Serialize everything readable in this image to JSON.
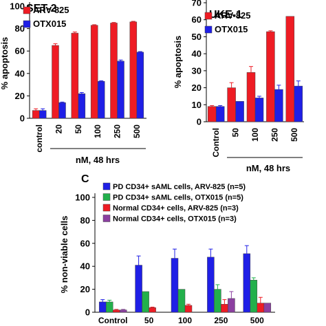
{
  "chart_data": [
    {
      "type": "bar",
      "panel_label": "",
      "title": "SET-2",
      "ylabel": "% apoptosis",
      "xlabel": "nM, 48 hrs",
      "categories": [
        "control",
        "20",
        "50",
        "100",
        "250",
        "500"
      ],
      "ylim": [
        0,
        100
      ],
      "yticks": [
        0,
        20,
        40,
        60,
        80,
        100
      ],
      "legend_position": "top-left",
      "series": [
        {
          "name": "ARV-825",
          "color": "#ee1c24",
          "values": [
            7,
            65,
            76,
            83,
            85,
            86
          ],
          "errors": [
            1.5,
            1.5,
            1,
            0.5,
            0.5,
            0.5
          ]
        },
        {
          "name": "OTX015",
          "color": "#1f1fe6",
          "values": [
            7,
            14,
            22,
            33,
            51,
            59
          ],
          "errors": [
            1.5,
            0.5,
            1,
            0.5,
            1,
            0.5
          ]
        }
      ]
    },
    {
      "type": "bar",
      "panel_label": "",
      "title": "UKE-1",
      "ylabel": "% apoptosis",
      "xlabel": "nM, 48 hrs",
      "categories": [
        "Control",
        "50",
        "100",
        "250",
        "500"
      ],
      "ylim": [
        0,
        70
      ],
      "yticks": [
        0,
        10,
        20,
        30,
        40,
        50,
        60,
        70
      ],
      "legend_position": "top-left",
      "series": [
        {
          "name": "ARV-825",
          "color": "#ee1c24",
          "values": [
            9,
            20,
            29,
            53,
            62
          ],
          "errors": [
            0.5,
            3,
            3.5,
            0.5,
            0
          ]
        },
        {
          "name": "OTX015",
          "color": "#1f1fe6",
          "values": [
            9,
            12,
            14,
            19,
            21
          ],
          "errors": [
            0.5,
            0,
            1,
            2.5,
            3
          ]
        }
      ]
    },
    {
      "type": "bar",
      "panel_label": "C",
      "title": "",
      "ylabel": "% non-viable cells",
      "xlabel": "",
      "categories": [
        "Control",
        "50",
        "100",
        "250",
        "500"
      ],
      "ylim": [
        0,
        100
      ],
      "yticks": [
        0,
        20,
        40,
        60,
        80,
        100
      ],
      "legend_position": "top",
      "series": [
        {
          "name": "PD CD34+ sAML cells, ARV-825 (n=5)",
          "color": "#1f1fe6",
          "values": [
            9,
            41,
            47,
            48,
            51
          ],
          "errors": [
            2,
            8,
            8,
            7,
            7
          ]
        },
        {
          "name": "PD CD34+ sAML cells, OTX015 (n=5)",
          "color": "#22b04b",
          "values": [
            9,
            18,
            20,
            20,
            28
          ],
          "errors": [
            1.5,
            0,
            0,
            4,
            2
          ]
        },
        {
          "name": "Normal CD34+ cells, ARV-825 (n=3)",
          "color": "#ee1c24",
          "values": [
            2,
            4,
            6,
            7,
            8
          ],
          "errors": [
            0.5,
            0.5,
            1,
            4,
            5
          ]
        },
        {
          "name": "Normal CD34+ cells, OTX015 (n=3)",
          "color": "#8b3fa0",
          "values": [
            2,
            0,
            0,
            12,
            8
          ],
          "errors": [
            0.5,
            0,
            0,
            6,
            0
          ]
        }
      ]
    }
  ]
}
